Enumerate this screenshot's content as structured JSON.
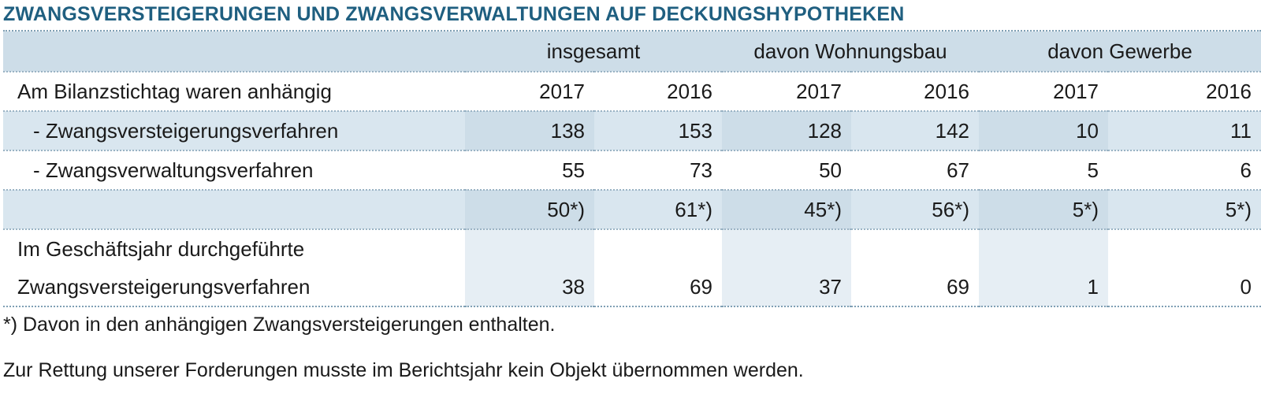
{
  "title": "ZWANGSVERSTEIGERUNGEN UND ZWANGSVERWALTUNGEN AUF DECKUNGSHYPOTHEKEN",
  "header_groups": [
    "insgesamt",
    "davon Wohnungsbau",
    "davon Gewerbe"
  ],
  "rows": [
    {
      "label": "Am Bilanzstichtag waren anhängig",
      "values": [
        "2017",
        "2016",
        "2017",
        "2016",
        "2017",
        "2016"
      ]
    },
    {
      "label": "- Zwangsversteigerungsverfahren",
      "values": [
        "138",
        "153",
        "128",
        "142",
        "10",
        "11"
      ]
    },
    {
      "label": "- Zwangsverwaltungsverfahren",
      "values": [
        "55",
        "73",
        "50",
        "67",
        "5",
        "6"
      ]
    },
    {
      "label": "",
      "values": [
        "50*)",
        "61*)",
        "45*)",
        "56*)",
        "5*)",
        "5*)"
      ]
    },
    {
      "label_line1": "Im Geschäftsjahr durchgeführte",
      "label_line2": "Zwangsversteigerungsverfahren",
      "values": [
        "38",
        "69",
        "37",
        "69",
        "1",
        "0"
      ]
    }
  ],
  "footnote": "*) Davon in den anhängigen Zwangsversteigerungen enthalten.",
  "note": "Zur Rettung unserer Forderungen musste im Berichtsjahr kein Objekt übernommen werden.",
  "colors": {
    "title": "#1f5f80",
    "header_bg": "#cddde8",
    "shade": "#d9e6ef"
  }
}
